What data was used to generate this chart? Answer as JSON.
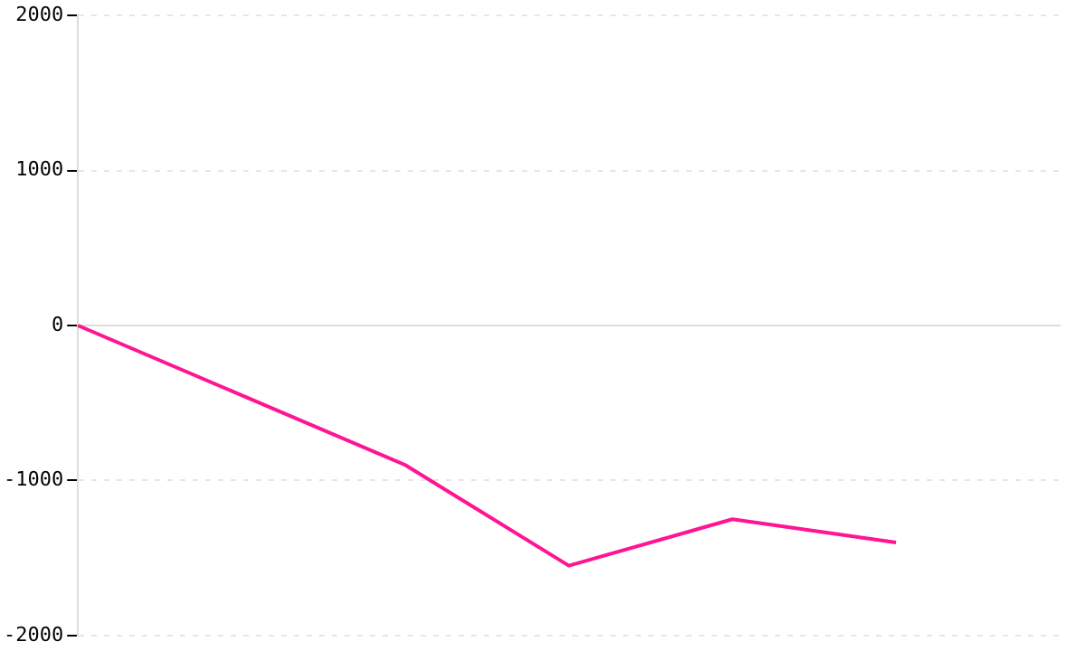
{
  "chart_data": {
    "type": "line",
    "categories": [
      null,
      null,
      null,
      null,
      null,
      null,
      null
    ],
    "series": [
      {
        "color": "#ff1493",
        "values": [
          0,
          -450,
          -900,
          -1550,
          -1250,
          -1400,
          null
        ]
      }
    ],
    "ylim": [
      -2000,
      2000
    ],
    "yticks": [
      -2000,
      -1000,
      0,
      1000,
      2000
    ],
    "grid": "y",
    "tick_labels": "y"
  }
}
